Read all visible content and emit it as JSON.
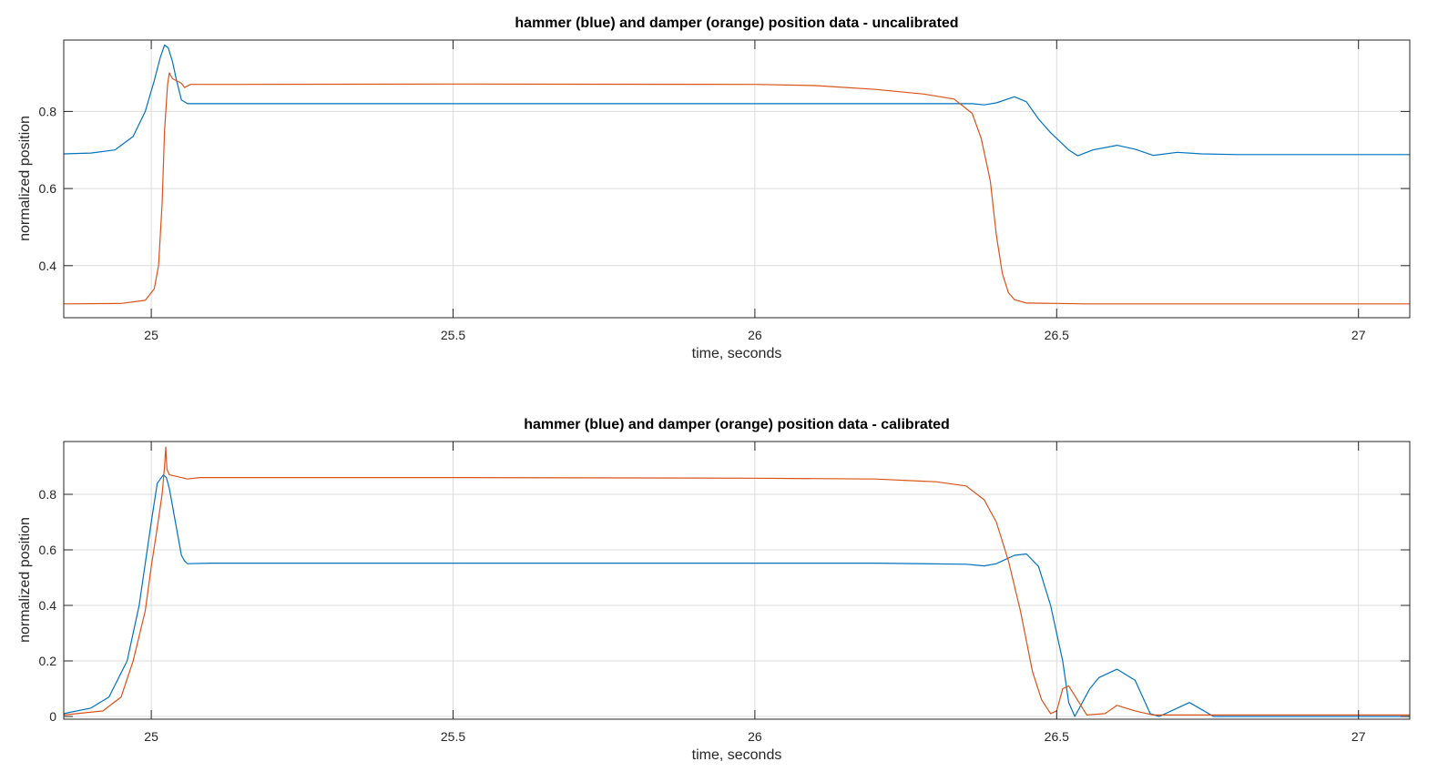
{
  "chart_data": [
    {
      "type": "line",
      "title": "hammer (blue) and damper (orange) position data - uncalibrated",
      "xlabel": "time, seconds",
      "ylabel": "normalized position",
      "xlim": [
        24.855,
        27.085
      ],
      "ylim": [
        0.265,
        0.985
      ],
      "xticks": [
        25,
        25.5,
        26,
        26.5,
        27
      ],
      "xticklabels": [
        "25",
        "25.5",
        "26",
        "26.5",
        "27"
      ],
      "yticks": [
        0.4,
        0.6,
        0.8
      ],
      "yticklabels": [
        "0.4",
        "0.6",
        "0.8"
      ],
      "grid": true,
      "series": [
        {
          "color": "#0072bd",
          "x": [
            24.855,
            24.9,
            24.94,
            24.97,
            24.99,
            25.005,
            25.015,
            25.022,
            25.028,
            25.035,
            25.042,
            25.05,
            25.06,
            25.08,
            25.2,
            25.5,
            25.8,
            26.0,
            26.2,
            26.3,
            26.36,
            26.38,
            26.4,
            26.43,
            26.45,
            26.47,
            26.49,
            26.52,
            26.535,
            26.56,
            26.6,
            26.63,
            26.66,
            26.7,
            26.74,
            26.8,
            27.085
          ],
          "y": [
            0.69,
            0.692,
            0.7,
            0.735,
            0.8,
            0.88,
            0.94,
            0.972,
            0.965,
            0.93,
            0.88,
            0.83,
            0.82,
            0.82,
            0.82,
            0.82,
            0.82,
            0.82,
            0.82,
            0.82,
            0.82,
            0.817,
            0.822,
            0.838,
            0.825,
            0.78,
            0.745,
            0.7,
            0.685,
            0.7,
            0.712,
            0.702,
            0.686,
            0.694,
            0.69,
            0.688,
            0.688
          ]
        },
        {
          "color": "#d95319",
          "x": [
            24.855,
            24.95,
            24.99,
            25.005,
            25.012,
            25.018,
            25.022,
            25.027,
            25.03,
            25.035,
            25.05,
            25.055,
            25.065,
            25.1,
            25.5,
            26.0,
            26.1,
            26.2,
            26.28,
            26.33,
            26.36,
            26.375,
            26.39,
            26.4,
            26.41,
            26.42,
            26.43,
            26.45,
            26.5,
            26.55,
            27.085
          ],
          "y": [
            0.301,
            0.302,
            0.31,
            0.34,
            0.4,
            0.56,
            0.75,
            0.87,
            0.9,
            0.885,
            0.873,
            0.862,
            0.87,
            0.87,
            0.871,
            0.87,
            0.867,
            0.857,
            0.845,
            0.832,
            0.795,
            0.73,
            0.62,
            0.48,
            0.38,
            0.33,
            0.312,
            0.303,
            0.302,
            0.301,
            0.301
          ]
        }
      ]
    },
    {
      "type": "line",
      "title": "hammer (blue) and damper (orange) position data - calibrated",
      "xlabel": "time, seconds",
      "ylabel": "normalized position",
      "xlim": [
        24.855,
        27.085
      ],
      "ylim": [
        -0.01,
        0.99
      ],
      "xticks": [
        25,
        25.5,
        26,
        26.5,
        27
      ],
      "xticklabels": [
        "25",
        "25.5",
        "26",
        "26.5",
        "27"
      ],
      "yticks": [
        0,
        0.2,
        0.4,
        0.6,
        0.8
      ],
      "yticklabels": [
        "0",
        "0.2",
        "0.4",
        "0.6",
        "0.8"
      ],
      "grid": true,
      "series": [
        {
          "color": "#0072bd",
          "x": [
            24.855,
            24.9,
            24.93,
            24.96,
            24.98,
            25.0,
            25.01,
            25.02,
            25.025,
            25.03,
            25.04,
            25.05,
            25.055,
            25.06,
            25.1,
            25.5,
            26.0,
            26.2,
            26.35,
            26.38,
            26.4,
            26.43,
            26.45,
            26.47,
            26.49,
            26.51,
            26.52,
            26.53,
            26.555,
            26.57,
            26.6,
            26.63,
            26.655,
            26.67,
            26.7,
            26.72,
            26.76,
            26.8,
            27.085
          ],
          "y": [
            0.01,
            0.03,
            0.07,
            0.2,
            0.4,
            0.7,
            0.84,
            0.87,
            0.86,
            0.82,
            0.7,
            0.58,
            0.56,
            0.55,
            0.552,
            0.552,
            0.552,
            0.552,
            0.548,
            0.542,
            0.55,
            0.58,
            0.585,
            0.54,
            0.4,
            0.2,
            0.05,
            0.0,
            0.1,
            0.14,
            0.17,
            0.13,
            0.01,
            0.0,
            0.03,
            0.05,
            0.0,
            0.0,
            0.0
          ]
        },
        {
          "color": "#d95319",
          "x": [
            24.855,
            24.92,
            24.95,
            24.97,
            24.99,
            25.0,
            25.01,
            25.018,
            25.022,
            25.024,
            25.026,
            25.03,
            25.05,
            25.06,
            25.08,
            25.5,
            26.0,
            26.2,
            26.3,
            26.35,
            26.38,
            26.4,
            26.42,
            26.44,
            26.46,
            26.475,
            26.49,
            26.5,
            26.51,
            26.52,
            26.55,
            26.58,
            26.6,
            26.63,
            26.66,
            27.085
          ],
          "y": [
            0.005,
            0.02,
            0.07,
            0.2,
            0.38,
            0.54,
            0.68,
            0.8,
            0.9,
            0.97,
            0.89,
            0.87,
            0.86,
            0.855,
            0.86,
            0.86,
            0.858,
            0.855,
            0.845,
            0.83,
            0.78,
            0.7,
            0.56,
            0.38,
            0.16,
            0.06,
            0.01,
            0.02,
            0.1,
            0.11,
            0.005,
            0.01,
            0.04,
            0.02,
            0.005,
            0.005
          ]
        }
      ]
    }
  ]
}
